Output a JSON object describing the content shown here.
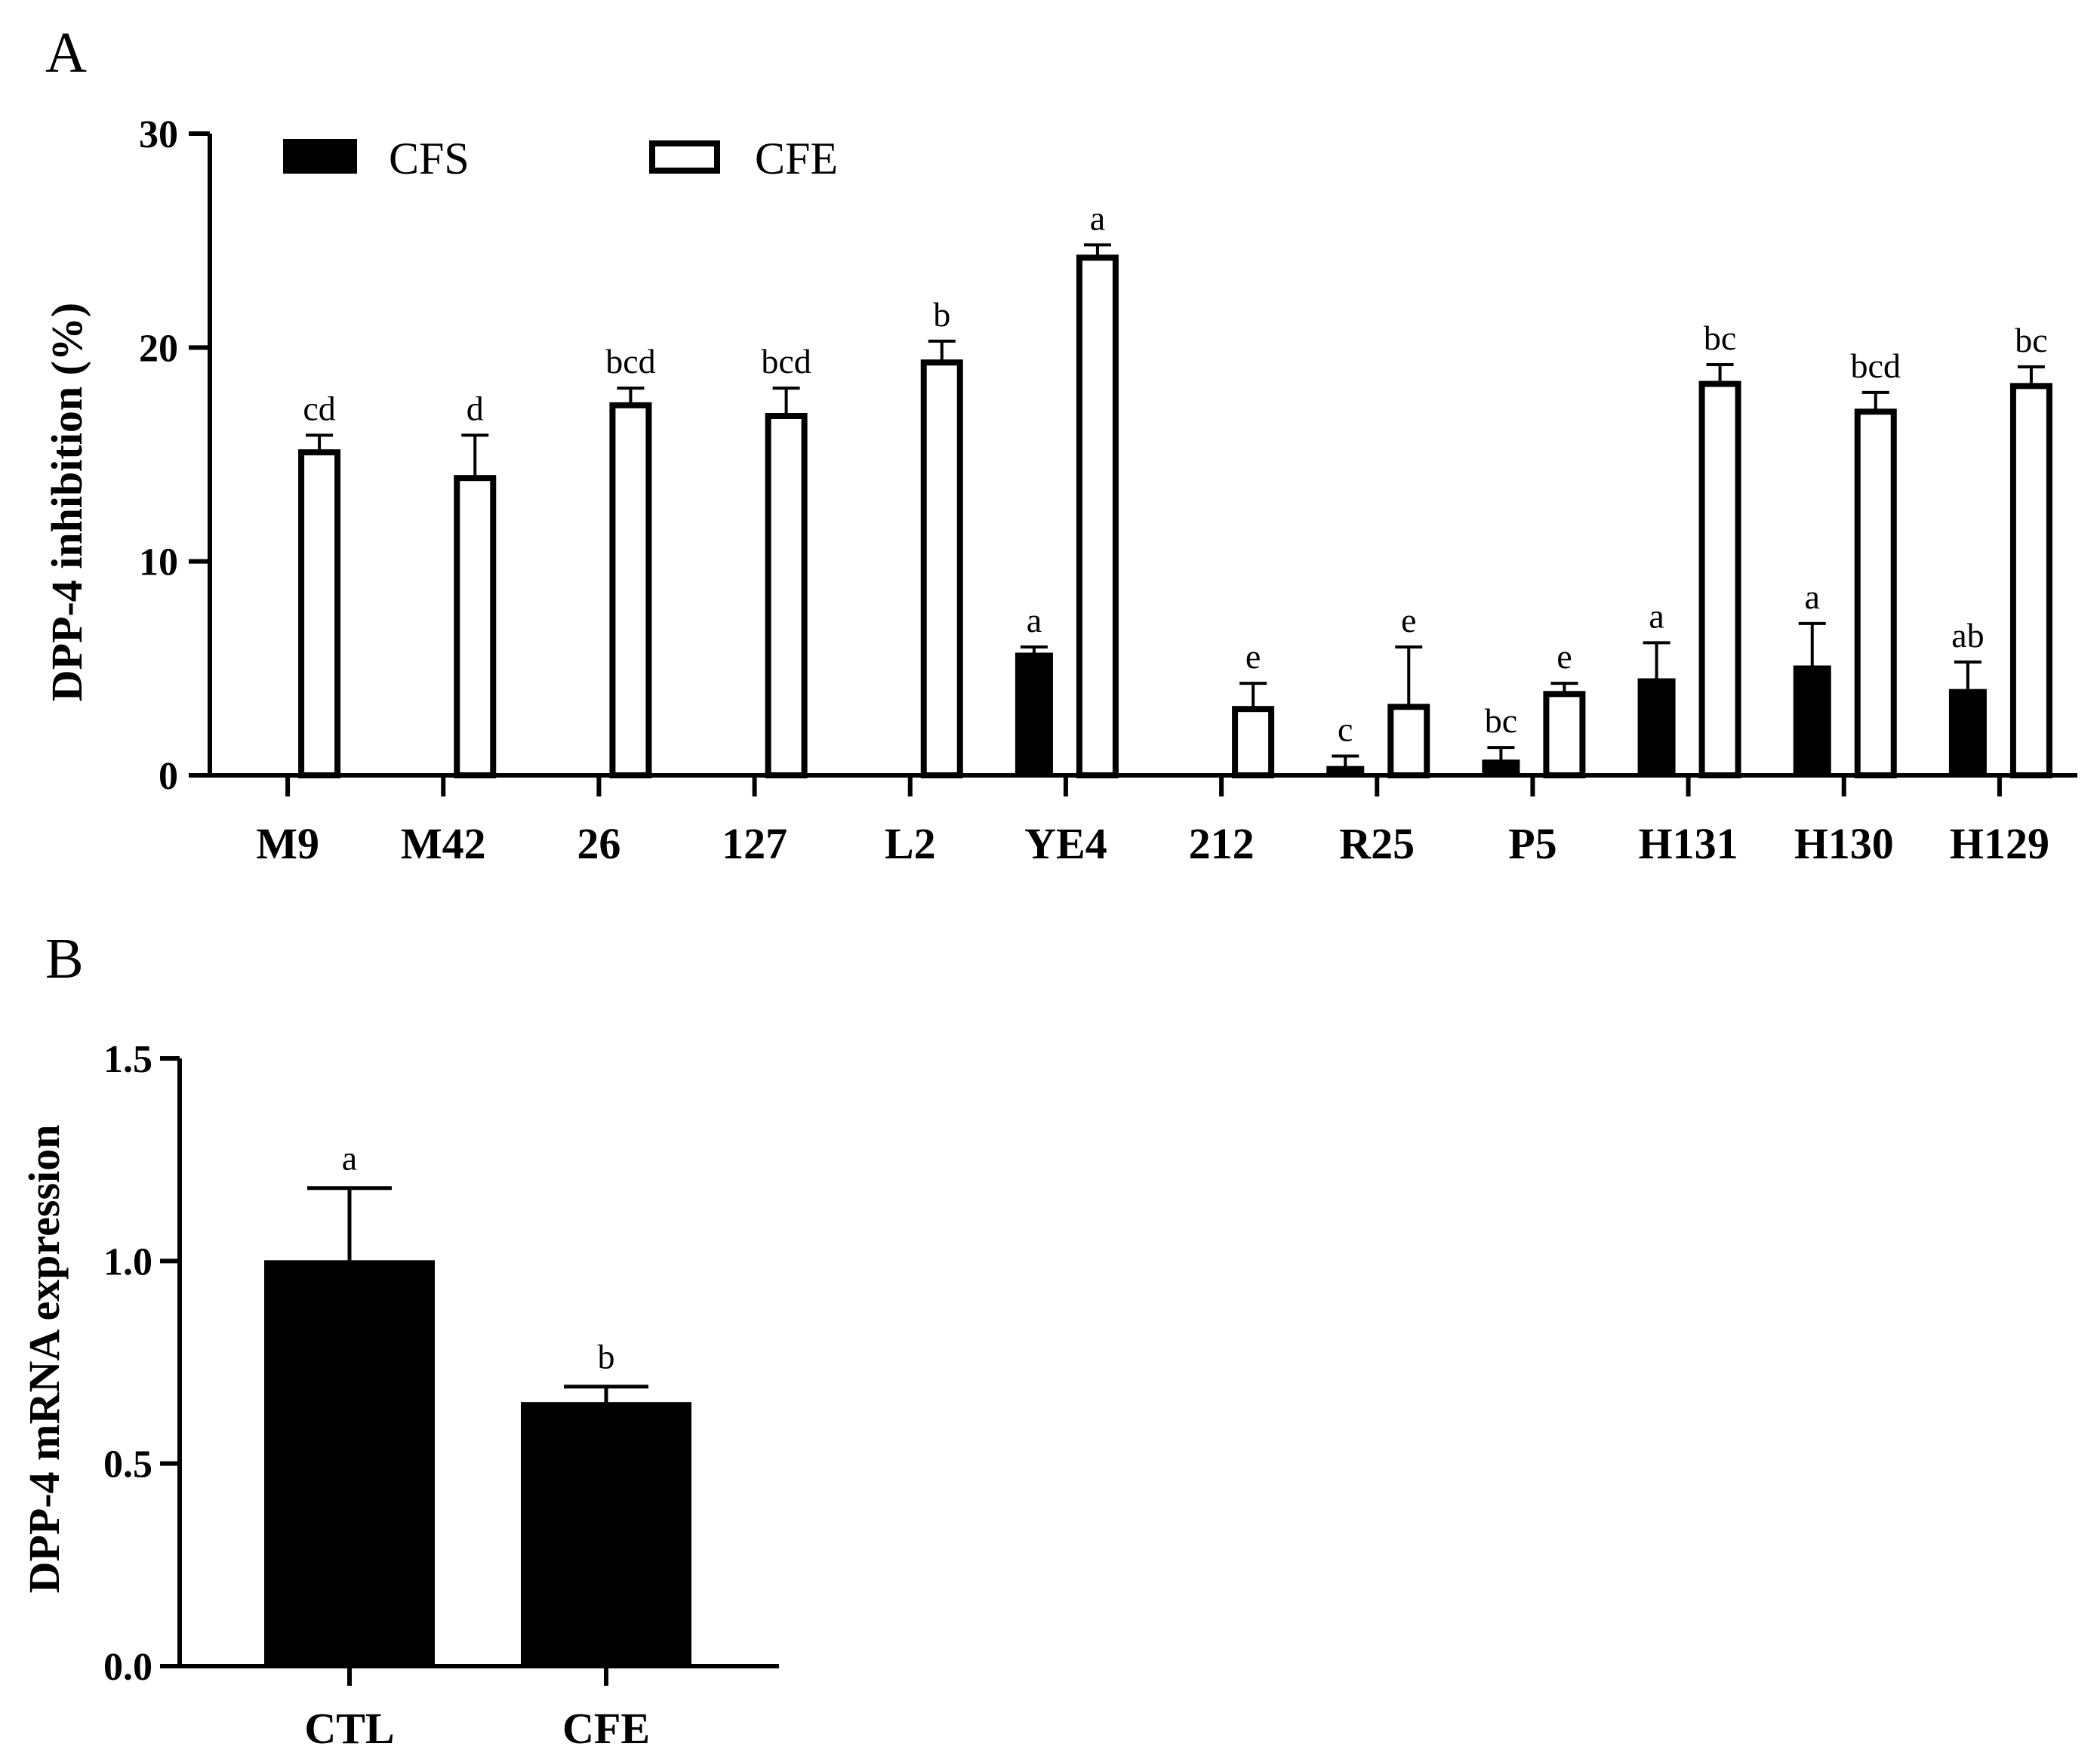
{
  "chart_data": [
    {
      "panel": "A",
      "type": "bar",
      "ylabel": "DPP-4 inhibition (%)",
      "ylim": [
        0,
        30
      ],
      "yticks": [
        0,
        10,
        20,
        30
      ],
      "categories": [
        "M9",
        "M42",
        "26",
        "127",
        "L2",
        "YE4",
        "212",
        "R25",
        "P5",
        "H131",
        "H130",
        "H129"
      ],
      "legend_position": "top-left",
      "series": [
        {
          "name": "CFS",
          "fill": "#000000",
          "values": [
            0,
            0,
            0,
            0,
            0,
            5.7,
            0,
            0.4,
            0.7,
            4.5,
            5.1,
            4.0
          ],
          "errors": [
            0,
            0,
            0,
            0,
            0,
            0.3,
            0,
            0.5,
            0.6,
            1.7,
            2.0,
            1.3
          ],
          "labels": [
            "",
            "",
            "",
            "",
            "",
            "a",
            "",
            "c",
            "bc",
            "a",
            "a",
            "ab"
          ]
        },
        {
          "name": "CFE",
          "fill": "#ffffff",
          "values": [
            15.1,
            13.9,
            17.3,
            16.8,
            19.3,
            24.2,
            3.1,
            3.2,
            3.8,
            18.3,
            17.0,
            18.2
          ],
          "errors": [
            0.8,
            2.0,
            0.8,
            1.3,
            1.0,
            0.6,
            1.2,
            2.8,
            0.5,
            0.9,
            0.9,
            0.9
          ],
          "labels": [
            "cd",
            "d",
            "bcd",
            "bcd",
            "b",
            "a",
            "e",
            "e",
            "e",
            "bc",
            "bcd",
            "bc"
          ]
        }
      ]
    },
    {
      "panel": "B",
      "type": "bar",
      "ylabel": "DPP-4 mRNA expression",
      "ylim": [
        0,
        1.5
      ],
      "yticks": [
        "0.0",
        "0.5",
        "1.0",
        "1.5"
      ],
      "categories": [
        "CTL",
        "CFE"
      ],
      "series": [
        {
          "fill": "#000000",
          "values": [
            1.0,
            0.65
          ],
          "errors": [
            0.18,
            0.04
          ],
          "labels": [
            "a",
            "b"
          ]
        }
      ]
    }
  ]
}
